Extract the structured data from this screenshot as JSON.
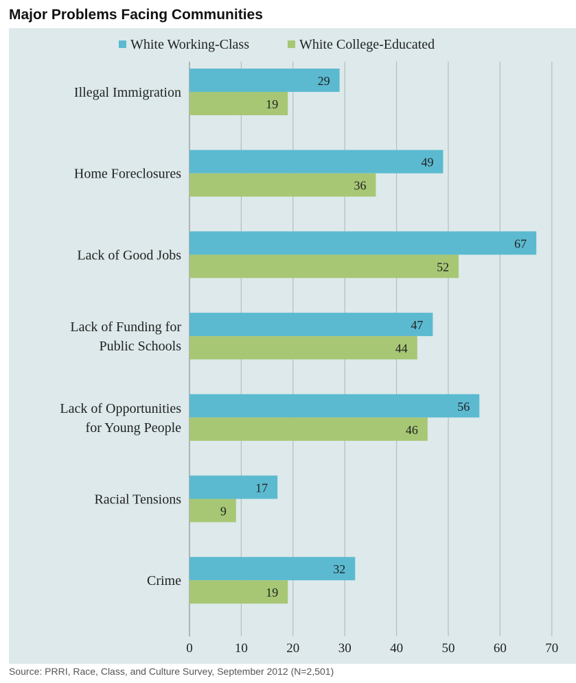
{
  "title": "Major Problems Facing Communities",
  "source": "Source: PRRI, Race, Class, and Culture Survey, September 2012 (N=2,501)",
  "colors": {
    "panel_background": "#dde9ea",
    "gridline": "#b8bcbd",
    "working_class": "#5bbad0",
    "college_educated": "#a7c775",
    "text": "#222222"
  },
  "chart_data": {
    "type": "bar",
    "orientation": "horizontal",
    "title": "Major Problems Facing Communities",
    "categories": [
      [
        "Illegal Immigration"
      ],
      [
        "Home Foreclosures"
      ],
      [
        "Lack of Good Jobs"
      ],
      [
        "Lack of Funding for",
        "Public Schools"
      ],
      [
        "Lack of Opportunities",
        "for Young People"
      ],
      [
        "Racial Tensions"
      ],
      [
        "Crime"
      ]
    ],
    "series": [
      {
        "name": "White Working-Class",
        "color": "#5bbad0",
        "values": [
          29,
          49,
          67,
          47,
          56,
          17,
          32
        ]
      },
      {
        "name": "White College-Educated",
        "color": "#a7c775",
        "values": [
          19,
          36,
          52,
          44,
          46,
          9,
          19
        ]
      }
    ],
    "xlim": [
      0,
      70
    ],
    "ticks": [
      0,
      10,
      20,
      30,
      40,
      50,
      60,
      70
    ],
    "grid": true,
    "legend_position": "top",
    "data_labels": true
  }
}
